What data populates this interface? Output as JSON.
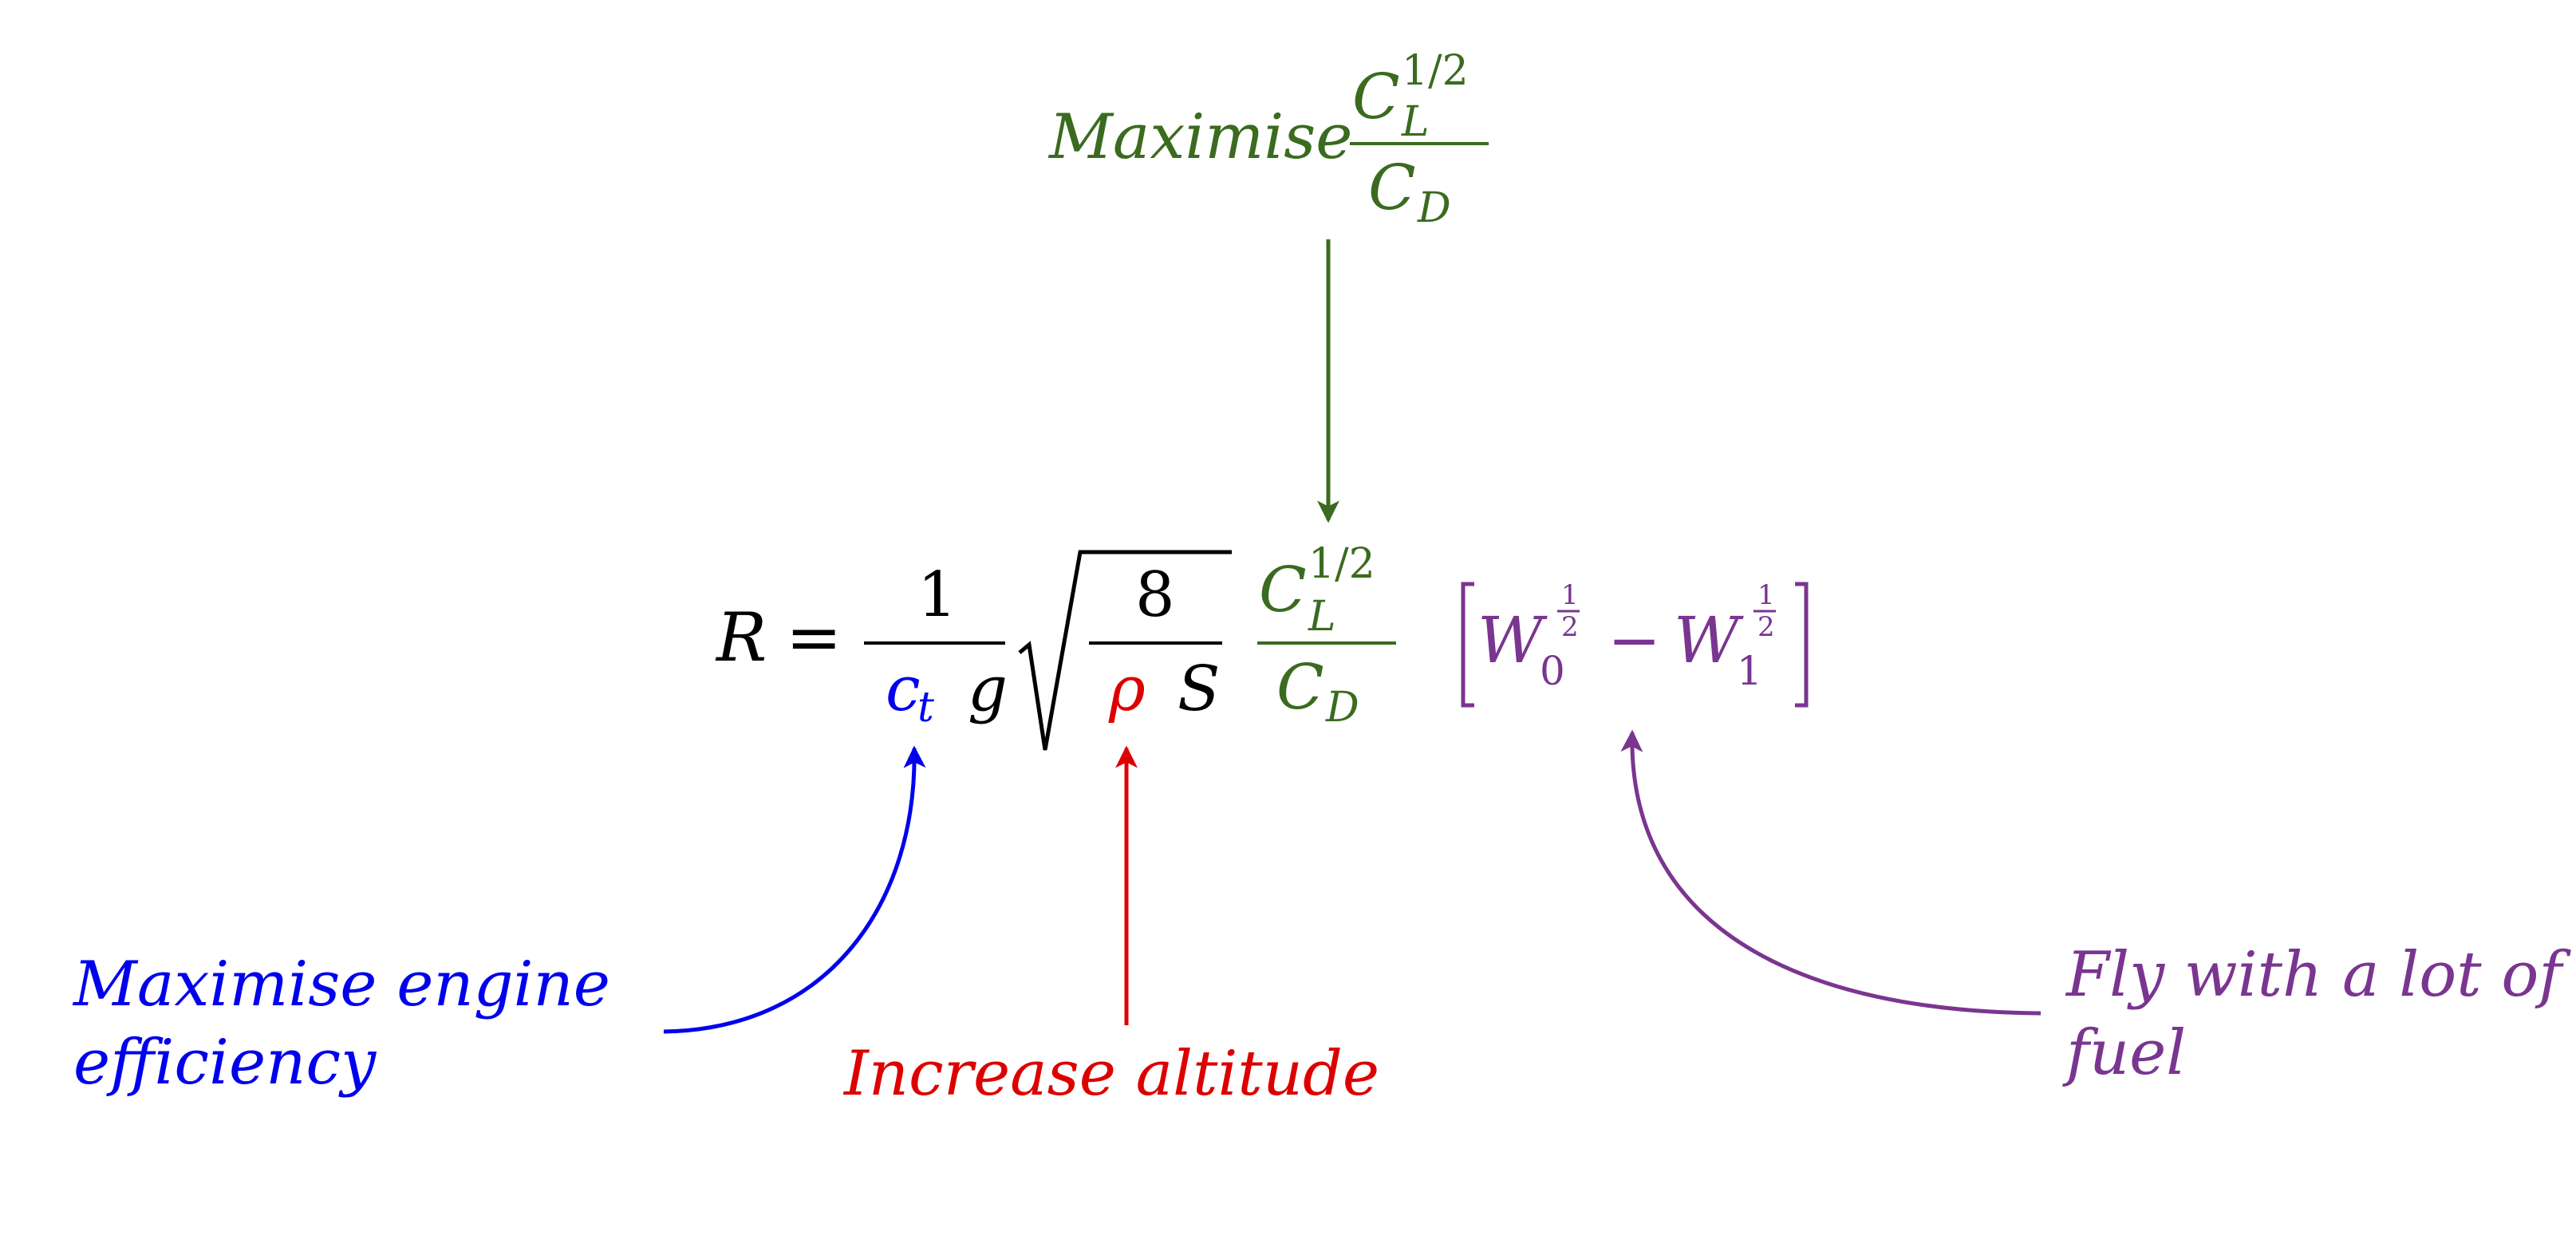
{
  "colors": {
    "black": "#000000",
    "green": "#3a6b1f",
    "blue": "#0000ee",
    "red": "#dd0000",
    "purple": "#7a3590"
  },
  "top_annotation": {
    "label": "Maximise",
    "num_base": "C",
    "num_sup": "1/2",
    "num_sub": "L",
    "den_base": "C",
    "den_sub": "D"
  },
  "equation": {
    "lhs": "R",
    "equals": "=",
    "frac1_num": "1",
    "ct_base": "c",
    "ct_sub": "t",
    "g": "g",
    "frac2_num": "8",
    "rho": "ρ",
    "S": "S",
    "cl_base": "C",
    "cl_sup": "1/2",
    "cl_sub": "L",
    "cd_base": "C",
    "cd_sub": "D",
    "bracket_left": "[",
    "bracket_right": "]",
    "w0_base": "W",
    "w0_sub": "0",
    "w1_base": "W",
    "w1_sub": "1",
    "exp_num": "1",
    "exp_den": "2",
    "minus": "−"
  },
  "annotations": {
    "engine_line1": "Maximise engine",
    "engine_line2": "efficiency",
    "altitude": "Increase altitude",
    "fuel_line1": "Fly with a lot of",
    "fuel_line2": "fuel"
  }
}
